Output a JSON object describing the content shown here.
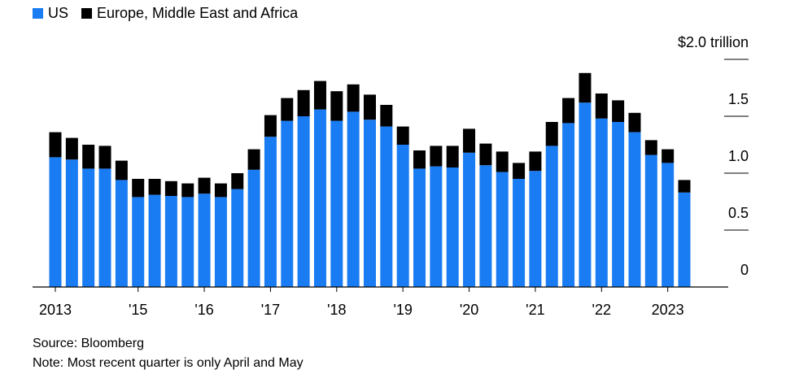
{
  "chart_data": {
    "type": "stacked_bar",
    "legend_position": "top-left",
    "series": [
      {
        "name": "US",
        "color": "#1a7cf2",
        "values": [
          1.14,
          1.12,
          1.04,
          1.04,
          0.94,
          0.79,
          0.81,
          0.8,
          0.79,
          0.82,
          0.79,
          0.86,
          1.03,
          1.32,
          1.46,
          1.5,
          1.56,
          1.46,
          1.54,
          1.47,
          1.41,
          1.25,
          1.04,
          1.06,
          1.05,
          1.18,
          1.07,
          1.01,
          0.95,
          1.02,
          1.24,
          1.44,
          1.62,
          1.48,
          1.45,
          1.36,
          1.16,
          1.09,
          0.83
        ]
      },
      {
        "name": "Europe, Middle East and Africa",
        "color": "#000000",
        "values": [
          0.22,
          0.19,
          0.21,
          0.2,
          0.17,
          0.16,
          0.14,
          0.13,
          0.12,
          0.14,
          0.12,
          0.14,
          0.18,
          0.19,
          0.2,
          0.23,
          0.25,
          0.26,
          0.24,
          0.22,
          0.19,
          0.16,
          0.16,
          0.18,
          0.19,
          0.21,
          0.19,
          0.18,
          0.14,
          0.17,
          0.21,
          0.22,
          0.26,
          0.22,
          0.19,
          0.17,
          0.13,
          0.12,
          0.11
        ]
      }
    ],
    "categories": [
      "2013",
      null,
      null,
      null,
      null,
      "'15",
      null,
      null,
      null,
      "'16",
      null,
      null,
      null,
      "'17",
      null,
      null,
      null,
      "'18",
      null,
      null,
      null,
      "'19",
      null,
      null,
      null,
      "'20",
      null,
      null,
      null,
      "'21",
      null,
      null,
      null,
      "'22",
      null,
      null,
      null,
      "2023",
      null
    ],
    "ylim": [
      0,
      2.0
    ],
    "yticks": [
      0,
      0.5,
      {
        "value": 1,
        "label": "1.0"
      },
      1.5,
      {
        "value": 2,
        "label": "$2.0 trillion"
      }
    ],
    "grid": true,
    "source": "Source: Bloomberg",
    "note": "Note: Most recent quarter is only April and May"
  }
}
